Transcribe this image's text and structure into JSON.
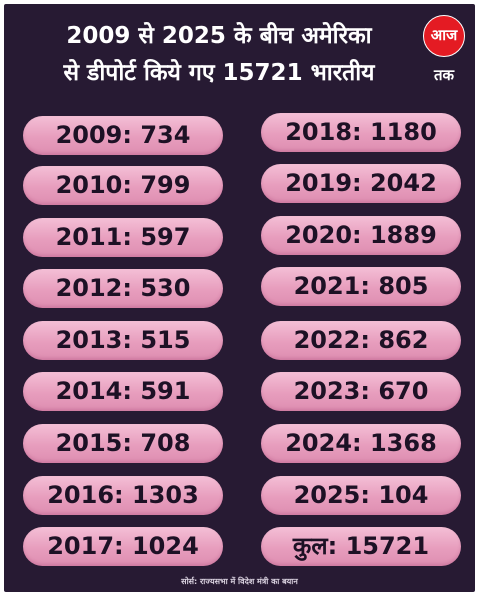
{
  "title": {
    "line1": "2009 से 2025 के बीच अमेरिका",
    "line2": "से डीपोर्ट किये गए 15721 भारतीय"
  },
  "logo": {
    "text": "आज तक",
    "color": "#e41b23"
  },
  "left_column": [
    "2009: 734",
    "2010: 799",
    "2011: 597",
    "2012: 530",
    "2013: 515",
    "2014: 591",
    "2015: 708",
    "2016: 1303",
    "2017: 1024"
  ],
  "right_column": [
    "2018: 1180",
    "2019: 2042",
    "2020: 1889",
    "2021: 805",
    "2022: 862",
    "2023: 670",
    "2024: 1368",
    "2025: 104",
    "कुल: 15721"
  ],
  "source": "सोर्स: राज्यसभा में विदेश मंत्री का बयान",
  "colors": {
    "background": "#271a33",
    "pill": "#eaa3c3",
    "pill_text": "#1d1125",
    "title_text": "#ffffff"
  }
}
